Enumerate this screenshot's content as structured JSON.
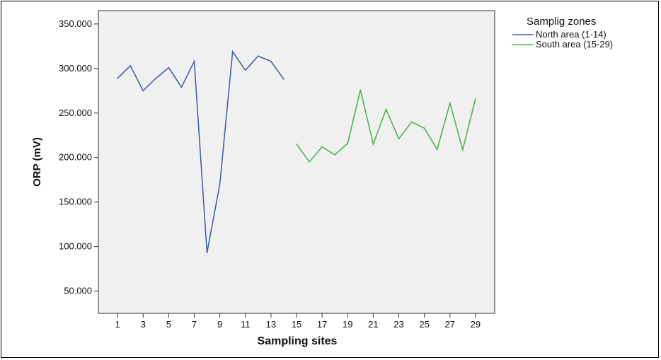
{
  "chart_data": {
    "type": "line",
    "xlabel": "Sampling sites",
    "ylabel": "ORP (mV)",
    "xlim": [
      -0.5,
      30.5
    ],
    "ylim": [
      25,
      365
    ],
    "x_ticks": [
      1,
      3,
      5,
      7,
      9,
      11,
      13,
      15,
      17,
      19,
      21,
      23,
      25,
      27,
      29
    ],
    "y_ticks": [
      50,
      100,
      150,
      200,
      250,
      300,
      350
    ],
    "y_tick_labels": [
      "50.000",
      "100.000",
      "150.000",
      "200.000",
      "250.000",
      "300.000",
      "350.000"
    ],
    "grid": false,
    "plot_background": "#f0f0f0",
    "legend": {
      "title": "Samplig zones",
      "position": "outside-top-right"
    },
    "series": [
      {
        "name": "North area (1-14)",
        "color": "#4a60a8",
        "x": [
          1,
          2,
          3,
          4,
          5,
          6,
          7,
          8,
          9,
          10,
          11,
          12,
          13,
          14
        ],
        "values": [
          289,
          303,
          275,
          289,
          301,
          279,
          308,
          93,
          170,
          319,
          298,
          314,
          308,
          288
        ]
      },
      {
        "name": "South area (15-29)",
        "color": "#4cb54c",
        "x": [
          15,
          16,
          17,
          18,
          19,
          20,
          21,
          22,
          23,
          24,
          25,
          26,
          27,
          28,
          29
        ],
        "values": [
          215,
          195,
          212,
          203,
          216,
          276,
          215,
          254,
          221,
          240,
          233,
          209,
          261,
          209,
          266
        ]
      }
    ]
  }
}
